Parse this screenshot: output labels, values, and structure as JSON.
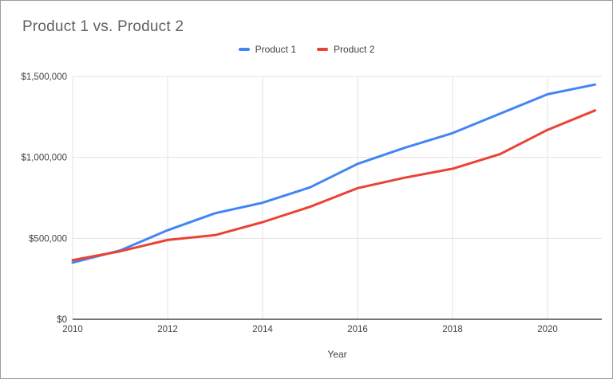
{
  "window": {
    "background": "#ffffff",
    "border_color": "#9b9b9b"
  },
  "chart": {
    "title": "Product 1 vs. Product 2",
    "x_axis_title": "Year"
  },
  "colors": {
    "title_text": "#616161",
    "axis_text": "#424242",
    "gridline": "#e3e3e3",
    "baseline": "#757575",
    "series1": "#4285f4",
    "series2": "#ea4335"
  },
  "chart_data": {
    "type": "line",
    "title": "Product 1 vs. Product 2",
    "xlabel": "Year",
    "ylabel": "",
    "x": [
      2010,
      2011,
      2012,
      2013,
      2014,
      2015,
      2016,
      2017,
      2018,
      2019,
      2020,
      2021
    ],
    "series": [
      {
        "name": "Product 1",
        "color": "#4285f4",
        "values": [
          350000,
          425000,
          550000,
          655000,
          720000,
          815000,
          960000,
          1060000,
          1150000,
          1270000,
          1390000,
          1450000
        ]
      },
      {
        "name": "Product 2",
        "color": "#ea4335",
        "values": [
          365000,
          420000,
          490000,
          520000,
          600000,
          695000,
          810000,
          875000,
          930000,
          1020000,
          1170000,
          1290000
        ]
      }
    ],
    "ylim": [
      0,
      1500000
    ],
    "xlim": [
      2010,
      2021
    ],
    "grid": true,
    "legend_position": "top",
    "y_ticks": [
      {
        "value": 0,
        "label": "$0"
      },
      {
        "value": 500000,
        "label": "$500,000"
      },
      {
        "value": 1000000,
        "label": "$1,000,000"
      },
      {
        "value": 1500000,
        "label": "$1,500,000"
      }
    ],
    "x_ticks": [
      {
        "value": 2010,
        "label": "2010"
      },
      {
        "value": 2012,
        "label": "2012"
      },
      {
        "value": 2014,
        "label": "2014"
      },
      {
        "value": 2016,
        "label": "2016"
      },
      {
        "value": 2018,
        "label": "2018"
      },
      {
        "value": 2020,
        "label": "2020"
      }
    ]
  }
}
